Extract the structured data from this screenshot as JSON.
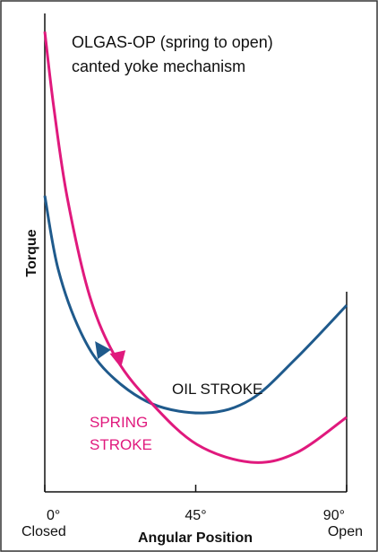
{
  "chart_data": {
    "type": "line",
    "title": [
      "OLGAS-OP (spring to open)",
      "canted yoke mechanism"
    ],
    "xlabel": "Angular Position",
    "ylabel": "Torque",
    "xlim": [
      0,
      90
    ],
    "ylim": [
      0,
      100
    ],
    "xticks": [
      {
        "value": 0,
        "label": "0°"
      },
      {
        "value": 45,
        "label": "45°"
      },
      {
        "value": 90,
        "label": "90°"
      }
    ],
    "annotations": [
      {
        "text": "Closed",
        "x": 0
      },
      {
        "text": "Open",
        "x": 90
      }
    ],
    "series": [
      {
        "name": "OIL STROKE",
        "color": "#1f5a8c",
        "x": [
          0,
          4,
          10.7,
          18.7,
          32,
          48,
          61.4,
          74.8,
          90
        ],
        "values": [
          61.9,
          46.5,
          33.4,
          25,
          18.4,
          16.5,
          19.3,
          27.8,
          39
        ]
      },
      {
        "name": "SPRING STROKE",
        "color": "#e0197d",
        "x": [
          0,
          2.7,
          6.7,
          13.4,
          21.4,
          32,
          45.4,
          61.4,
          74.8,
          90
        ],
        "values": [
          96.2,
          80.3,
          61.5,
          40.9,
          27.8,
          18.4,
          9.9,
          6.2,
          8.1,
          15.6
        ]
      }
    ]
  }
}
